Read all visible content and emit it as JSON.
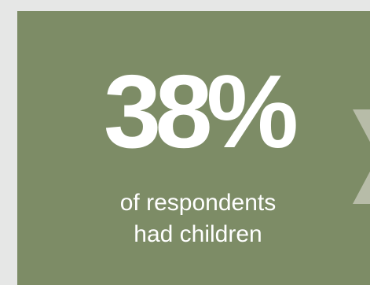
{
  "stat": {
    "value": "38%",
    "caption_line1": "of respondents",
    "caption_line2": "had children"
  },
  "colors": {
    "background": "#e6e7e6",
    "card": "#7d8c66",
    "text": "#ffffff",
    "arrow": "#b7bca8"
  },
  "icons": {
    "side_arrow": "chevron-right-icon"
  }
}
